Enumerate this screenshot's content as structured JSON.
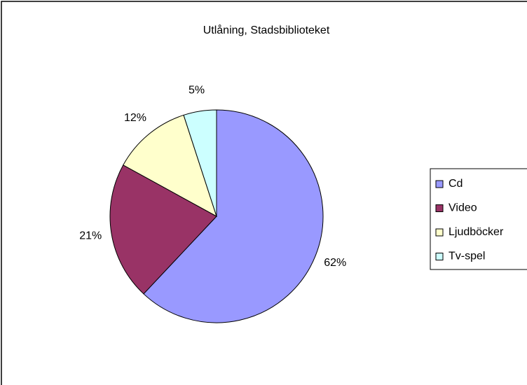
{
  "chart_data": {
    "type": "pie",
    "title": "Utlåning, Stadsbiblioteket",
    "categories": [
      "Cd",
      "Video",
      "Ljudböcker",
      "Tv-spel"
    ],
    "values": [
      62,
      21,
      12,
      5
    ],
    "value_labels": [
      "62%",
      "21%",
      "12%",
      "5%"
    ],
    "colors": [
      "#9999ff",
      "#993366",
      "#ffffcc",
      "#ccffff"
    ],
    "legend": "right"
  }
}
